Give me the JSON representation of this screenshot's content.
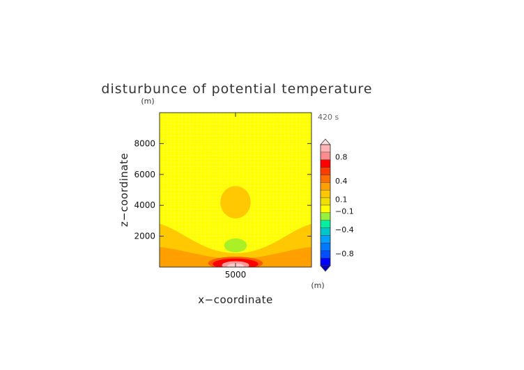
{
  "chart_data": {
    "type": "heatmap",
    "subtype": "filled-contour",
    "title": "disturbunce of potential temperature",
    "xlabel": "x−coordinate",
    "ylabel": "z−coordinate",
    "x_unit": "(m)",
    "y_unit": "(m)",
    "time_label": "420 s",
    "xlim": [
      0,
      10000
    ],
    "ylim": [
      0,
      10000
    ],
    "x_ticks": [
      5000
    ],
    "y_ticks": [
      2000,
      4000,
      6000,
      8000
    ],
    "background_level_color": "#ffff00",
    "grid": true,
    "features": [
      {
        "shape": "circle",
        "center": [
          5000,
          4200
        ],
        "radius": [
          1000,
          1050
        ],
        "level": "0.1 to 0.2",
        "color": "#ffc800"
      },
      {
        "shape": "ellipse",
        "center": [
          5000,
          1400
        ],
        "radius": [
          750,
          450
        ],
        "level": "-0.2 to -0.1",
        "color": "#aaf026"
      },
      {
        "shape": "band",
        "center": [
          5000,
          200
        ],
        "radius": [
          5000,
          3000
        ],
        "level": "0.1 to 0.2",
        "color": "#ffc800"
      },
      {
        "shape": "ellipse",
        "center": [
          5000,
          250
        ],
        "radius": [
          1800,
          420
        ],
        "level": "0.3 to 0.4",
        "color": "#ff5a00"
      },
      {
        "shape": "ellipse",
        "center": [
          5000,
          200
        ],
        "radius": [
          1500,
          350
        ],
        "level": "0.4 to 0.6",
        "color": "#ff0000"
      },
      {
        "shape": "ellipse",
        "center": [
          5000,
          120
        ],
        "radius": [
          900,
          260
        ],
        "level": "0.6 to 0.8",
        "color": "#ff9a9a"
      },
      {
        "shape": "ellipse",
        "center": [
          5000,
          60
        ],
        "radius": [
          550,
          180
        ],
        "level": "0.8 to 1.0",
        "color": "#ffcccc"
      }
    ],
    "colorbar": {
      "levels": [
        {
          "range": "above 1.0",
          "color": "#ffdede",
          "extend": true
        },
        {
          "range": "0.8 to 1.0",
          "color": "#ffb4b4"
        },
        {
          "range": "0.6 to 0.8",
          "color": "#ff8c8c"
        },
        {
          "range": "0.5 to 0.6",
          "color": "#ff0000"
        },
        {
          "range": "0.4 to 0.5",
          "color": "#ff3c00"
        },
        {
          "range": "0.3 to 0.4",
          "color": "#ff6e00"
        },
        {
          "range": "0.2 to 0.3",
          "color": "#ffa000"
        },
        {
          "range": "0.1 to 0.2",
          "color": "#ffc800"
        },
        {
          "range": "0.0 to 0.1",
          "color": "#f0e000"
        },
        {
          "range": "-0.1 to 0.0",
          "color": "#ffff00"
        },
        {
          "range": "-0.2 to -0.1",
          "color": "#96f03c"
        },
        {
          "range": "-0.3 to -0.2",
          "color": "#00f0a0"
        },
        {
          "range": "-0.4 to -0.3",
          "color": "#00c8c8"
        },
        {
          "range": "-0.5 to -0.4",
          "color": "#00a0ff"
        },
        {
          "range": "-0.6 to -0.5",
          "color": "#0078ff"
        },
        {
          "range": "-0.8 to -0.6",
          "color": "#0050ff"
        },
        {
          "range": "-1.0 to -0.8",
          "color": "#0000ff"
        },
        {
          "range": "below -1.0",
          "color": "#0000c8",
          "extend": true
        }
      ],
      "labels": [
        {
          "text": "0.8",
          "value": 0.8
        },
        {
          "text": "0.4",
          "value": 0.4
        },
        {
          "text": "0.1",
          "value": 0.1
        },
        {
          "text": "−0.1",
          "value": -0.1
        },
        {
          "text": "−0.4",
          "value": -0.4
        },
        {
          "text": "−0.8",
          "value": -0.8
        }
      ]
    }
  }
}
